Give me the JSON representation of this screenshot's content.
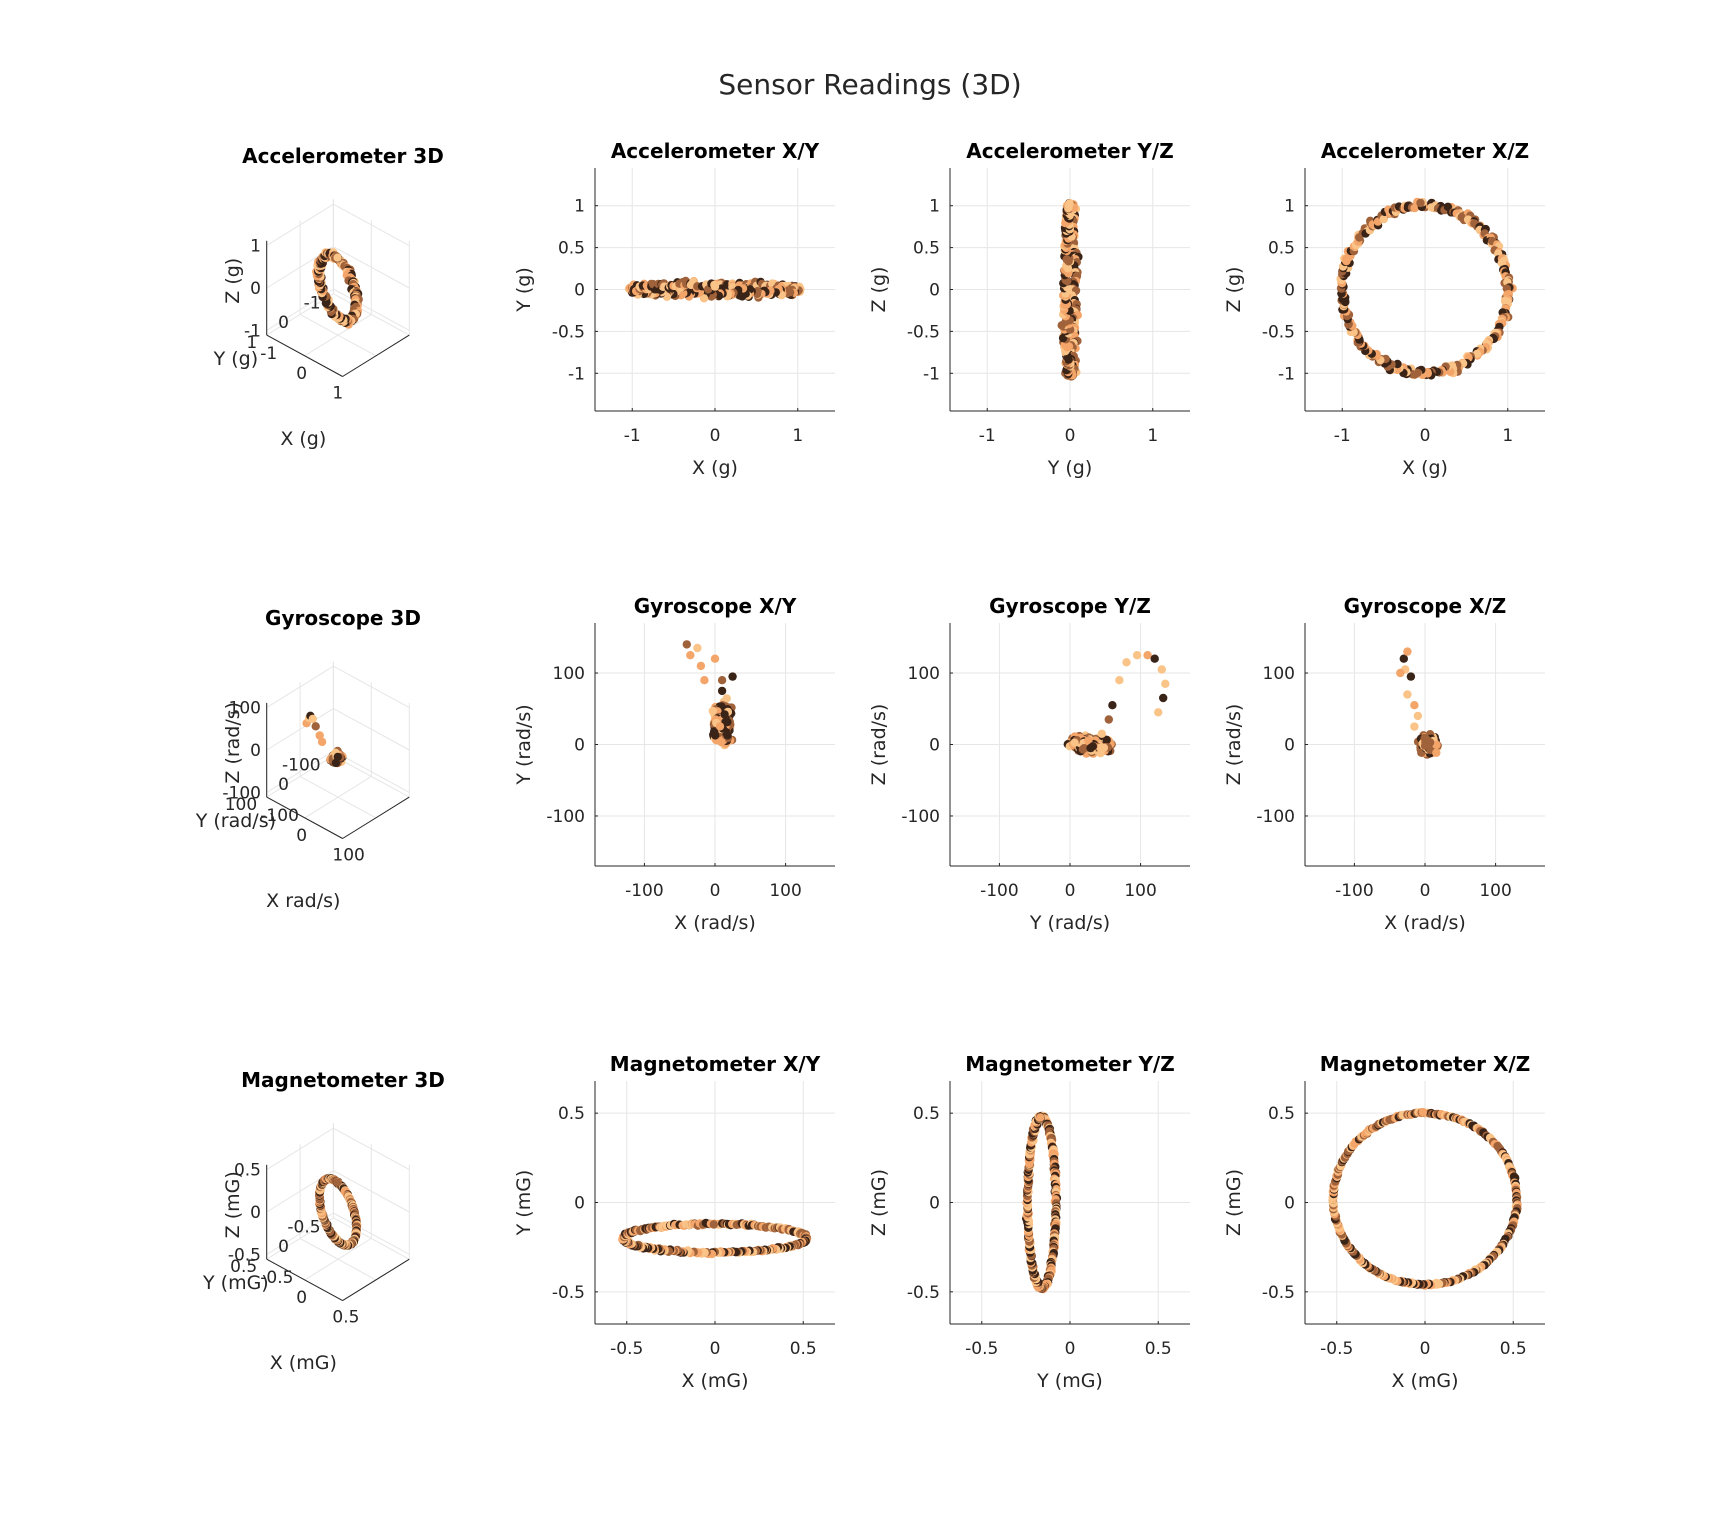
{
  "figure": {
    "title": "Sensor Readings (3D)"
  },
  "colors": {
    "dark": "#3a2317",
    "mid": "#a0623a",
    "light": "#f3a56a",
    "pale": "#fac387",
    "grid": "#e6e6e6",
    "axis": "#262626"
  },
  "chart_data": [
    {
      "type": "scatter3d",
      "sensor": "accelerometer",
      "title": "Accelerometer 3D",
      "xlabel": "X (g)",
      "ylabel": "Y (g)",
      "zlabel": "Z (g)",
      "xticks": [
        "-1",
        "0",
        "1"
      ],
      "yticks": [
        "-1",
        "0",
        "1"
      ],
      "zticks": [
        "-1",
        "0",
        "1"
      ],
      "shape": "ring",
      "radius": 1.0,
      "noise": 0.05,
      "grid": true
    },
    {
      "type": "scatter",
      "sensor": "accelerometer",
      "title": "Accelerometer X/Y",
      "xlabel": "X (g)",
      "ylabel": "Y (g)",
      "xlim": [
        -1.45,
        1.45
      ],
      "ylim": [
        -1.45,
        1.45
      ],
      "xticks": [
        -1,
        0,
        1
      ],
      "yticks": [
        -1,
        -0.5,
        0,
        0.5,
        1
      ],
      "xticklabels": [
        "-1",
        "0",
        "1"
      ],
      "yticklabels": [
        "-1",
        "-0.5",
        "0",
        "0.5",
        "1"
      ],
      "projection": "xy",
      "shape": "ring",
      "radius": 1.0,
      "y_amp": 0.05,
      "noise": 0.05,
      "grid": true
    },
    {
      "type": "scatter",
      "sensor": "accelerometer",
      "title": "Accelerometer Y/Z",
      "xlabel": "Y (g)",
      "ylabel": "Z (g)",
      "xlim": [
        -1.45,
        1.45
      ],
      "ylim": [
        -1.45,
        1.45
      ],
      "xticks": [
        -1,
        0,
        1
      ],
      "yticks": [
        -1,
        -0.5,
        0,
        0.5,
        1
      ],
      "xticklabels": [
        "-1",
        "0",
        "1"
      ],
      "yticklabels": [
        "-1",
        "-0.5",
        "0",
        "0.5",
        "1"
      ],
      "projection": "yz",
      "shape": "ring",
      "radius": 1.0,
      "y_amp": 0.05,
      "noise": 0.05,
      "grid": true
    },
    {
      "type": "scatter",
      "sensor": "accelerometer",
      "title": "Accelerometer X/Z",
      "xlabel": "X (g)",
      "ylabel": "Z (g)",
      "xlim": [
        -1.45,
        1.45
      ],
      "ylim": [
        -1.45,
        1.45
      ],
      "xticks": [
        -1,
        0,
        1
      ],
      "yticks": [
        -1,
        -0.5,
        0,
        0.5,
        1
      ],
      "xticklabels": [
        "-1",
        "0",
        "1"
      ],
      "yticklabels": [
        "-1",
        "-0.5",
        "0",
        "0.5",
        "1"
      ],
      "projection": "xz",
      "shape": "ring",
      "radius": 1.0,
      "noise": 0.05,
      "grid": true
    },
    {
      "type": "scatter3d",
      "sensor": "gyroscope",
      "title": "Gyroscope 3D",
      "xlabel": "X rad/s)",
      "ylabel": "Y (rad/s)",
      "zlabel": "Z (rad/s)",
      "xticks": [
        "-100",
        "0",
        "100"
      ],
      "yticks": [
        "-100",
        "0",
        "100"
      ],
      "zticks": [
        "-100",
        "0",
        "100"
      ],
      "shape": "cluster",
      "center": [
        10,
        30,
        0
      ],
      "spread": [
        15,
        25,
        10
      ],
      "grid": true
    },
    {
      "type": "scatter",
      "sensor": "gyroscope",
      "title": "Gyroscope X/Y",
      "xlabel": "X (rad/s)",
      "ylabel": "Y (rad/s)",
      "xlim": [
        -170,
        170
      ],
      "ylim": [
        -170,
        170
      ],
      "xticks": [
        -100,
        0,
        100
      ],
      "yticks": [
        -100,
        0,
        100
      ],
      "xticklabels": [
        "-100",
        "0",
        "100"
      ],
      "yticklabels": [
        "-100",
        "0",
        "100"
      ],
      "projection": "xy",
      "shape": "cluster",
      "center": [
        10,
        30
      ],
      "spread": [
        12,
        30
      ],
      "tail": [
        [
          -40,
          140
        ],
        [
          -35,
          125
        ],
        [
          -25,
          135
        ],
        [
          -20,
          110
        ],
        [
          -15,
          90
        ],
        [
          0,
          120
        ],
        [
          10,
          90
        ],
        [
          25,
          95
        ],
        [
          10,
          75
        ]
      ],
      "grid": true
    },
    {
      "type": "scatter",
      "sensor": "gyroscope",
      "title": "Gyroscope Y/Z",
      "xlabel": "Y (rad/s)",
      "ylabel": "Z (rad/s)",
      "xlim": [
        -170,
        170
      ],
      "ylim": [
        -170,
        170
      ],
      "xticks": [
        -100,
        0,
        100
      ],
      "yticks": [
        -100,
        0,
        100
      ],
      "xticklabels": [
        "-100",
        "0",
        "100"
      ],
      "yticklabels": [
        "-100",
        "0",
        "100"
      ],
      "projection": "yz",
      "shape": "cluster",
      "center": [
        30,
        0
      ],
      "spread": [
        30,
        12
      ],
      "tail": [
        [
          45,
          15
        ],
        [
          55,
          35
        ],
        [
          60,
          55
        ],
        [
          70,
          90
        ],
        [
          80,
          115
        ],
        [
          95,
          125
        ],
        [
          110,
          125
        ],
        [
          120,
          120
        ],
        [
          130,
          105
        ],
        [
          135,
          85
        ],
        [
          132,
          65
        ],
        [
          125,
          45
        ]
      ],
      "grid": true
    },
    {
      "type": "scatter",
      "sensor": "gyroscope",
      "title": "Gyroscope X/Z",
      "xlabel": "X (rad/s)",
      "ylabel": "Z (rad/s)",
      "xlim": [
        -170,
        170
      ],
      "ylim": [
        -170,
        170
      ],
      "xticks": [
        -100,
        0,
        100
      ],
      "yticks": [
        -100,
        0,
        100
      ],
      "xticklabels": [
        "-100",
        "0",
        "100"
      ],
      "yticklabels": [
        "-100",
        "0",
        "100"
      ],
      "projection": "xz",
      "shape": "cluster",
      "center": [
        5,
        0
      ],
      "spread": [
        12,
        12
      ],
      "tail": [
        [
          -30,
          120
        ],
        [
          -25,
          130
        ],
        [
          -28,
          105
        ],
        [
          -20,
          95
        ],
        [
          -35,
          100
        ],
        [
          -25,
          70
        ],
        [
          -15,
          55
        ],
        [
          -10,
          40
        ],
        [
          -15,
          25
        ]
      ],
      "grid": true
    },
    {
      "type": "scatter3d",
      "sensor": "magnetometer",
      "title": "Magnetometer 3D",
      "xlabel": "X (mG)",
      "ylabel": "Y (mG)",
      "zlabel": "Z (mG)",
      "xticks": [
        "-0.5",
        "0",
        "0.5"
      ],
      "yticks": [
        "-0.5",
        "0",
        "0.5"
      ],
      "zticks": [
        "-0.5",
        "0",
        "0.5"
      ],
      "shape": "ring",
      "radius": 0.5,
      "noise": 0.008,
      "grid": true
    },
    {
      "type": "scatter",
      "sensor": "magnetometer",
      "title": "Magnetometer X/Y",
      "xlabel": "X (mG)",
      "ylabel": "Y (mG)",
      "xlim": [
        -0.68,
        0.68
      ],
      "ylim": [
        -0.68,
        0.68
      ],
      "xticks": [
        -0.5,
        0,
        0.5
      ],
      "yticks": [
        -0.5,
        0,
        0.5
      ],
      "xticklabels": [
        "-0.5",
        "0",
        "0.5"
      ],
      "yticklabels": [
        "-0.5",
        "0",
        "0.5"
      ],
      "projection": "xy",
      "shape": "ring",
      "radius": 0.52,
      "y_center": -0.2,
      "y_amp": 0.08,
      "noise": 0.008,
      "grid": true
    },
    {
      "type": "scatter",
      "sensor": "magnetometer",
      "title": "Magnetometer Y/Z",
      "xlabel": "Y (mG)",
      "ylabel": "Z (mG)",
      "xlim": [
        -0.68,
        0.68
      ],
      "ylim": [
        -0.68,
        0.68
      ],
      "xticks": [
        -0.5,
        0,
        0.5
      ],
      "yticks": [
        -0.5,
        0,
        0.5
      ],
      "xticklabels": [
        "-0.5",
        "0",
        "0.5"
      ],
      "yticklabels": [
        "-0.5",
        "0",
        "0.5"
      ],
      "projection": "yz",
      "shape": "ring",
      "radius": 0.48,
      "y_center": -0.16,
      "y_amp": 0.08,
      "noise": 0.008,
      "grid": true
    },
    {
      "type": "scatter",
      "sensor": "magnetometer",
      "title": "Magnetometer X/Z",
      "xlabel": "X (mG)",
      "ylabel": "Z (mG)",
      "xlim": [
        -0.68,
        0.68
      ],
      "ylim": [
        -0.68,
        0.68
      ],
      "xticks": [
        -0.5,
        0,
        0.5
      ],
      "yticks": [
        -0.5,
        0,
        0.5
      ],
      "xticklabels": [
        "-0.5",
        "0",
        "0.5"
      ],
      "yticklabels": [
        "-0.5",
        "0",
        "0.5"
      ],
      "projection": "xz",
      "shape": "ring",
      "radius": 0.52,
      "z_radius": 0.48,
      "z_center": 0.02,
      "noise": 0.006,
      "grid": true
    }
  ]
}
